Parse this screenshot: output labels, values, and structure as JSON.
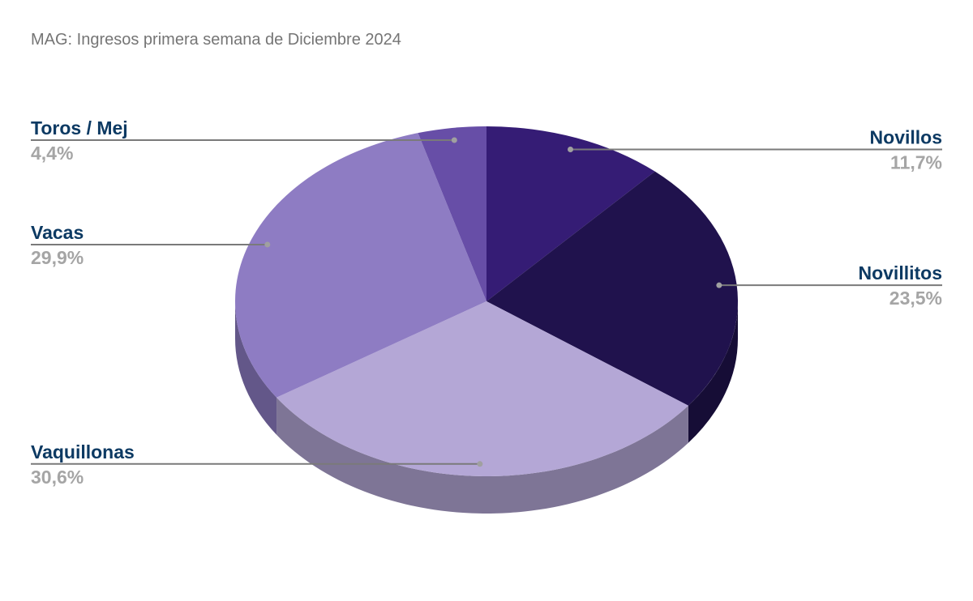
{
  "chart_data": {
    "type": "pie3d",
    "title": "MAG: Ingresos primera semana de Diciembre 2024",
    "categories": [
      "Novillos",
      "Novillitos",
      "Vaquillonas",
      "Vacas",
      "Toros / Mej"
    ],
    "values": [
      11.7,
      23.5,
      30.6,
      29.9,
      4.4
    ],
    "value_labels": [
      "11,7%",
      "23,5%",
      "30,6%",
      "29,9%",
      "4,4%"
    ],
    "colors": [
      "#351c75",
      "#20124d",
      "#b4a7d6",
      "#8e7cc3",
      "#674ea7"
    ]
  }
}
